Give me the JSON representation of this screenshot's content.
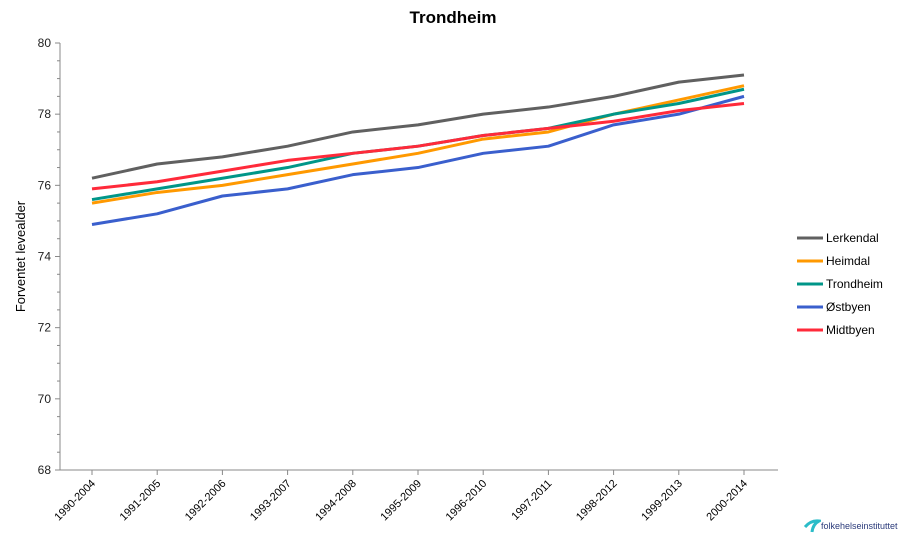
{
  "chart_data": {
    "type": "line",
    "title": "Trondheim",
    "ylabel": "Forventet levealder",
    "xlabel": "",
    "ylim": [
      68,
      80
    ],
    "yticks": [
      68,
      70,
      72,
      74,
      76,
      78,
      80
    ],
    "grid": false,
    "legend_position": "right",
    "categories": [
      "1990-2004",
      "1991-2005",
      "1992-2006",
      "1993-2007",
      "1994-2008",
      "1995-2009",
      "1996-2010",
      "1997-2011",
      "1998-2012",
      "1999-2013",
      "2000-2014"
    ],
    "series": [
      {
        "name": "Lerkendal",
        "color": "#606060",
        "values": [
          76.2,
          76.6,
          76.8,
          77.1,
          77.5,
          77.7,
          78.0,
          78.2,
          78.5,
          78.9,
          79.1
        ]
      },
      {
        "name": "Heimdal",
        "color": "#ff9900",
        "values": [
          75.5,
          75.8,
          76.0,
          76.3,
          76.6,
          76.9,
          77.3,
          77.5,
          78.0,
          78.4,
          78.8
        ]
      },
      {
        "name": "Trondheim",
        "color": "#009688",
        "values": [
          75.6,
          75.9,
          76.2,
          76.5,
          76.9,
          77.1,
          77.4,
          77.6,
          78.0,
          78.3,
          78.7
        ]
      },
      {
        "name": "Østbyen",
        "color": "#3a5fcd",
        "values": [
          74.9,
          75.2,
          75.7,
          75.9,
          76.3,
          76.5,
          76.9,
          77.1,
          77.7,
          78.0,
          78.5
        ]
      },
      {
        "name": "Midtbyen",
        "color": "#ff2a3a",
        "values": [
          75.9,
          76.1,
          76.4,
          76.7,
          76.9,
          77.1,
          77.4,
          77.6,
          77.8,
          78.1,
          78.3
        ]
      }
    ]
  },
  "logo": {
    "text": "folkehelseinstituttet"
  }
}
